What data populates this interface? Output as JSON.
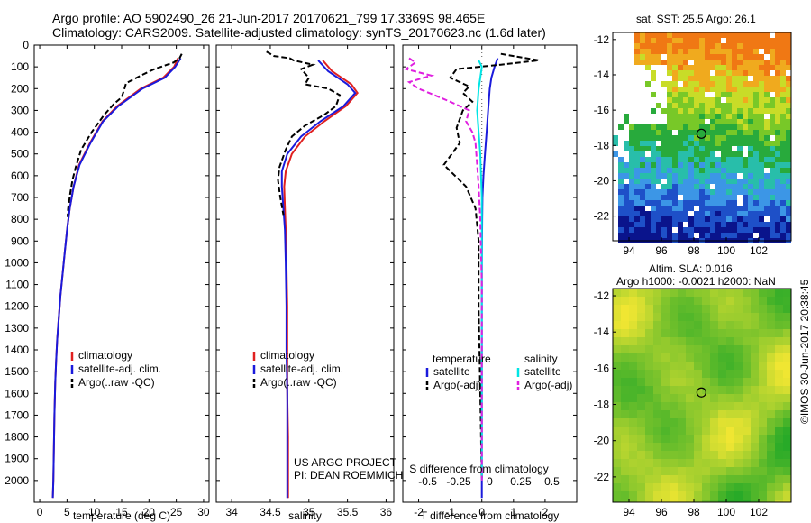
{
  "header": {
    "title_line1": "Argo profile: AO 5902490_26 21-Jun-2017 20170621_799 17.3369S 98.465E",
    "title_line2": "Climatology: CARS2009. Satellite-adjusted climatology: synTS_20170623.nc (1.6d later)"
  },
  "credit": "©IMOS 30-Jun-2017 20:38:45",
  "colors": {
    "clim": "#e02020",
    "sat": "#1a1adc",
    "argo": "#000000",
    "sal_sat": "#00e5e5",
    "sal_argo": "#e020e0"
  },
  "chart_data": [
    {
      "type": "line",
      "name": "temperature",
      "xlabel": "temperature (deg C)",
      "ylabel": "",
      "xlim": [
        -1,
        31
      ],
      "ylim": [
        0,
        2100
      ],
      "xticks": [
        0,
        5,
        10,
        15,
        20,
        25,
        30
      ],
      "yticks": [
        0,
        100,
        200,
        300,
        400,
        500,
        600,
        700,
        800,
        900,
        1000,
        1100,
        1200,
        1300,
        1400,
        1500,
        1600,
        1700,
        1800,
        1900,
        2000
      ],
      "legend": [
        "climatology",
        "satellite-adj. clim.",
        "Argo(..raw -QC)"
      ],
      "series": [
        {
          "name": "climatology",
          "color": "#e02020",
          "dash": "",
          "x": [
            25.3,
            24.6,
            22.6,
            18.5,
            14.2,
            11.5,
            9.2,
            7.2,
            6.2,
            5.5,
            5.0,
            4.6,
            4.2,
            3.8,
            3.5,
            3.2,
            3.0,
            2.85,
            2.7,
            2.6,
            2.5,
            2.4
          ],
          "y": [
            60,
            100,
            150,
            200,
            280,
            350,
            450,
            550,
            650,
            750,
            850,
            950,
            1050,
            1150,
            1250,
            1350,
            1450,
            1550,
            1700,
            1850,
            2000,
            2080
          ]
        },
        {
          "name": "satellite-adj. clim.",
          "color": "#1a1adc",
          "dash": "",
          "x": [
            25.8,
            24.8,
            22.9,
            18.8,
            14.4,
            11.6,
            9.3,
            7.3,
            6.2,
            5.5,
            5.0,
            4.6,
            4.2,
            3.8,
            3.5,
            3.2,
            3.0,
            2.85,
            2.7,
            2.6,
            2.5,
            2.4
          ],
          "y": [
            60,
            100,
            150,
            200,
            280,
            350,
            450,
            550,
            650,
            750,
            850,
            950,
            1050,
            1150,
            1250,
            1350,
            1450,
            1550,
            1700,
            1850,
            2000,
            2080
          ]
        },
        {
          "name": "Argo(..raw -QC)",
          "color": "#000000",
          "dash": "6,3",
          "x": [
            26.0,
            25.6,
            24.5,
            21.0,
            18.5,
            15.8,
            15.4,
            15.0,
            13.6,
            11.8,
            9.5,
            7.6,
            6.6,
            6.0,
            5.6,
            5.2,
            5.1
          ],
          "y": [
            40,
            60,
            80,
            110,
            140,
            175,
            210,
            240,
            270,
            320,
            400,
            480,
            560,
            620,
            680,
            750,
            790
          ]
        }
      ]
    },
    {
      "type": "line",
      "name": "salinity",
      "xlabel": "salinity",
      "ylabel": "",
      "xlim": [
        33.8,
        36.1
      ],
      "ylim": [
        0,
        2100
      ],
      "xticks": [
        34,
        34.5,
        35,
        35.5,
        36
      ],
      "yticks": [
        0,
        100,
        200,
        300,
        400,
        500,
        600,
        700,
        800,
        900,
        1000,
        1100,
        1200,
        1300,
        1400,
        1500,
        1600,
        1700,
        1800,
        1900,
        2000
      ],
      "legend": [
        "climatology",
        "satellite-adj. clim.",
        "Argo(..raw -QC)"
      ],
      "series": [
        {
          "name": "climatology",
          "color": "#e02020",
          "dash": "",
          "x": [
            35.18,
            35.3,
            35.55,
            35.63,
            35.48,
            35.2,
            34.95,
            34.78,
            34.7,
            34.68,
            34.69,
            34.7,
            34.71,
            34.72,
            34.72,
            34.72,
            34.73,
            34.73,
            34.73
          ],
          "y": [
            70,
            120,
            180,
            220,
            280,
            350,
            420,
            500,
            580,
            650,
            750,
            850,
            1000,
            1200,
            1400,
            1600,
            1800,
            2000,
            2080
          ]
        },
        {
          "name": "satellite-adj. clim.",
          "color": "#1a1adc",
          "dash": "",
          "x": [
            35.12,
            35.25,
            35.5,
            35.6,
            35.45,
            35.15,
            34.9,
            34.72,
            34.65,
            34.65,
            34.67,
            34.69,
            34.7,
            34.71,
            34.71,
            34.72,
            34.72,
            34.72,
            34.72
          ],
          "y": [
            70,
            120,
            180,
            220,
            280,
            350,
            420,
            500,
            580,
            650,
            750,
            850,
            1000,
            1200,
            1400,
            1600,
            1800,
            2000,
            2080
          ]
        },
        {
          "name": "Argo(..raw -QC)",
          "color": "#000000",
          "dash": "6,3",
          "x": [
            34.45,
            34.55,
            34.75,
            34.8,
            35.05,
            34.9,
            35.0,
            34.95,
            35.25,
            35.4,
            35.35,
            35.2,
            34.95,
            34.78,
            34.7,
            34.62,
            34.6,
            34.63,
            34.67
          ],
          "y": [
            30,
            50,
            60,
            70,
            90,
            110,
            150,
            180,
            200,
            230,
            280,
            320,
            370,
            420,
            480,
            560,
            620,
            700,
            780
          ]
        }
      ]
    },
    {
      "type": "line",
      "name": "difference",
      "xlabel": "T difference from climatology",
      "xlabel_top": "S difference from climatology",
      "xlim": [
        -2.5,
        3.0
      ],
      "ylim": [
        0,
        2100
      ],
      "xticks": [
        -2,
        -1,
        0,
        1,
        2
      ],
      "xticks_top": [
        -0.5,
        -0.25,
        0,
        0.25,
        0.5
      ],
      "yticks": [
        0,
        100,
        200,
        300,
        400,
        500,
        600,
        700,
        800,
        900,
        1000,
        1100,
        1200,
        1300,
        1400,
        1500,
        1600,
        1700,
        1800,
        1900,
        2000
      ],
      "legend_titles": [
        "temperature",
        "salinity"
      ],
      "legend": [
        "satellite",
        "Argo(-adj)",
        "satellite",
        "Argo(-adj)"
      ],
      "series": [
        {
          "name": "T satellite",
          "color": "#1a1adc",
          "dash": "",
          "x": [
            0.5,
            0.4,
            0.3,
            0.25,
            0.2,
            0.15,
            0.1,
            0.05,
            0.02,
            0.01,
            0.0,
            0.0
          ],
          "y": [
            60,
            100,
            150,
            200,
            300,
            400,
            500,
            600,
            700,
            800,
            1000,
            2080
          ]
        },
        {
          "name": "T Argo(-adj)",
          "color": "#000000",
          "dash": "6,3",
          "x": [
            0.6,
            1.8,
            0.6,
            -0.8,
            -1.0,
            -0.4,
            -0.6,
            -0.3,
            -0.6,
            -0.8,
            -0.7,
            -1.2,
            -0.5,
            -0.2,
            -0.1,
            -0.1,
            -0.05,
            0.0
          ],
          "y": [
            40,
            70,
            90,
            110,
            150,
            190,
            220,
            260,
            300,
            380,
            450,
            550,
            650,
            750,
            900,
            1200,
            1600,
            2000
          ]
        },
        {
          "name": "S satellite",
          "color": "#00e5e5",
          "dash": "",
          "x": [
            -0.1,
            0.0,
            -0.05,
            -0.1,
            -0.15,
            -0.1,
            -0.05,
            0.0,
            0.0,
            0.0
          ],
          "y": [
            70,
            100,
            150,
            200,
            300,
            400,
            500,
            700,
            1200,
            2000
          ]
        },
        {
          "name": "S Argo(-adj)",
          "color": "#e020e0",
          "dash": "6,3",
          "x": [
            -2.3,
            -2.1,
            -2.4,
            -1.6,
            -2.3,
            -2.0,
            -1.5,
            -1.0,
            -0.4,
            -0.5,
            -0.3,
            -0.2,
            -0.15,
            -0.1,
            -0.05,
            0.0,
            0.0
          ],
          "y": [
            60,
            80,
            110,
            140,
            170,
            200,
            230,
            260,
            300,
            350,
            400,
            450,
            550,
            650,
            800,
            1100,
            2000
          ]
        }
      ]
    }
  ],
  "texts": {
    "pi_line1": "US ARGO PROJECT",
    "pi_line2": "PI: DEAN ROEMMICH"
  },
  "maps": {
    "sst": {
      "title": "sat. SST: 25.5 Argo: 26.1",
      "xticks": [
        94,
        96,
        98,
        100,
        102
      ],
      "yticks": [
        -12,
        -14,
        -16,
        -18,
        -20,
        -22
      ],
      "xlim": [
        93.0,
        104.0
      ],
      "ylim": [
        -23.4,
        -11.6
      ],
      "profile": [
        98.465,
        -17.3369
      ]
    },
    "sla": {
      "title1": "Altim. SLA: 0.016",
      "title2": "Argo h1000: -0.0021 h2000: NaN",
      "xticks": [
        94,
        96,
        98,
        100,
        102
      ],
      "yticks": [
        -12,
        -14,
        -16,
        -18,
        -20,
        -22
      ],
      "xlim": [
        93.0,
        104.0
      ],
      "ylim": [
        -23.4,
        -11.6
      ],
      "profile": [
        98.465,
        -17.3369
      ]
    }
  }
}
